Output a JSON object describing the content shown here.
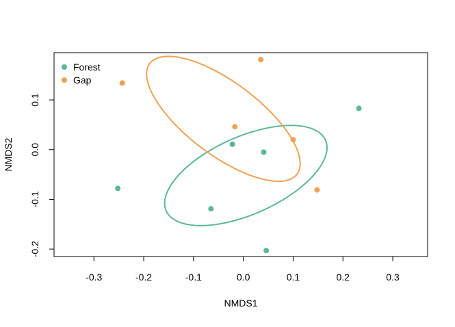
{
  "chart_data": {
    "type": "scatter",
    "title": "",
    "xlabel": "NMDS1",
    "ylabel": "NMDS2",
    "xlim": [
      -0.38,
      0.37
    ],
    "ylim": [
      -0.215,
      0.195
    ],
    "x_ticks": [
      -0.3,
      -0.2,
      -0.1,
      0.0,
      0.1,
      0.2,
      0.3
    ],
    "x_tick_labels": [
      "-0.3",
      "-0.2",
      "-0.1",
      "0.0",
      "0.1",
      "0.2",
      "0.3"
    ],
    "y_ticks": [
      -0.2,
      -0.1,
      0.0,
      0.1
    ],
    "y_tick_labels": [
      "-0.2",
      "-0.1",
      "0.0",
      "0.1"
    ],
    "grid": false,
    "legend_position": "top-left",
    "series": [
      {
        "name": "Forest",
        "color": "#5bb895",
        "points": [
          {
            "x": 0.232,
            "y": 0.083
          },
          {
            "x": -0.022,
            "y": 0.011
          },
          {
            "x": 0.041,
            "y": -0.005
          },
          {
            "x": -0.252,
            "y": -0.078
          },
          {
            "x": -0.065,
            "y": -0.119
          },
          {
            "x": 0.046,
            "y": -0.203
          }
        ],
        "ellipse": {
          "center": [
            0.005,
            -0.052
          ],
          "semi_axes": [
            0.175,
            0.078
          ],
          "rotation_deg": 24
        }
      },
      {
        "name": "Gap",
        "color": "#f4a050",
        "points": [
          {
            "x": 0.035,
            "y": 0.181
          },
          {
            "x": -0.243,
            "y": 0.134
          },
          {
            "x": -0.017,
            "y": 0.046
          },
          {
            "x": 0.1,
            "y": 0.02
          },
          {
            "x": 0.148,
            "y": -0.081
          }
        ],
        "ellipse": {
          "center": [
            -0.04,
            0.062
          ],
          "semi_axes": [
            0.185,
            0.073
          ],
          "rotation_deg": -37
        }
      }
    ]
  }
}
